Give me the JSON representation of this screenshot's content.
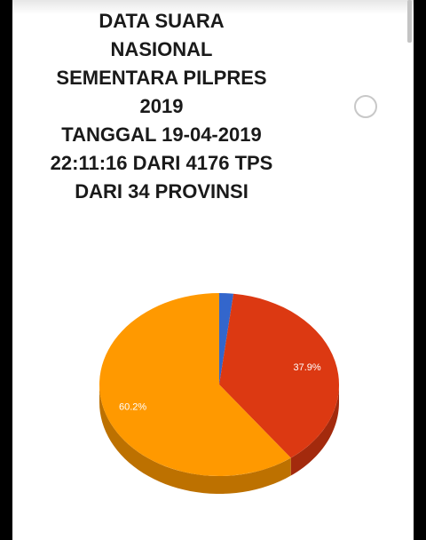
{
  "heading": {
    "line1": "DATA SUARA",
    "line2": "NASIONAL",
    "line3": "SEMENTARA PILPRES",
    "line4": "2019",
    "line5_prefix": "TANGGAL ",
    "line5_date": "19-04-2019",
    "line6_time": "22:11:16",
    "line6_mid": " DARI ",
    "line6_count": "4176",
    "line6_unit": " TPS",
    "line7_prefix": "DARI ",
    "line7_count": "34",
    "line7_unit": " PROVINSI"
  },
  "chart_data": {
    "type": "pie",
    "style": "3d",
    "title": "",
    "slices": [
      {
        "value": 1.9,
        "label": "",
        "color": "#3366cc"
      },
      {
        "value": 37.9,
        "label": "37.9%",
        "color": "#dc3912"
      },
      {
        "value": 60.2,
        "label": "60.2%",
        "color": "#ff9900"
      }
    ],
    "start_angle": "12 o'clock",
    "direction": "clockwise",
    "legend": "none"
  },
  "colors": {
    "background": "#ffffff",
    "outer_frame": "#000000",
    "text": "#1a1a1a"
  }
}
